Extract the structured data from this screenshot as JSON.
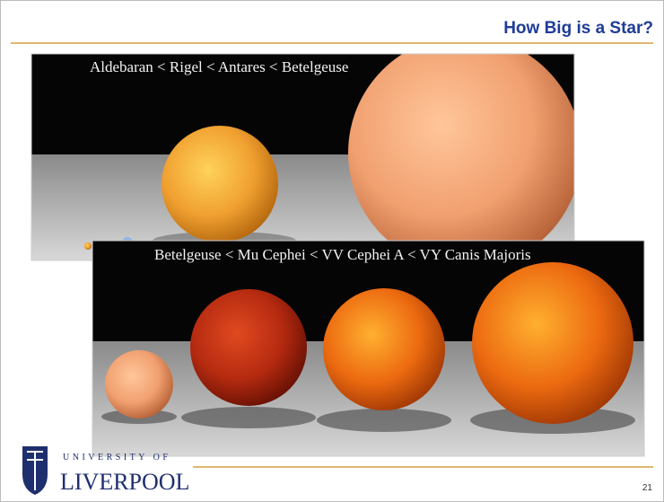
{
  "header": {
    "title": "How Big is a Star?"
  },
  "images": [
    {
      "caption": "Aldebaran < Rigel < Antares < Betelgeuse"
    },
    {
      "caption": "Betelgeuse < Mu Cephei < VV Cephei A < VY Canis Majoris"
    }
  ],
  "footer": {
    "logo_line1": "UNIVERSITY OF",
    "logo_line2": "LIVERPOOL",
    "page_number": 21
  }
}
